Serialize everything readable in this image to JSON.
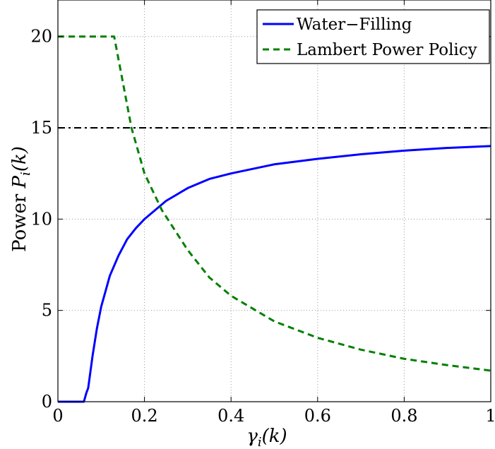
{
  "chart_data": {
    "type": "line",
    "title": "",
    "xlabel": "γi(k)",
    "ylabel": "Power Pi(k)",
    "xlim": [
      0,
      1
    ],
    "ylim": [
      0,
      22
    ],
    "grid": true,
    "legend_position": "top-right",
    "x_ticks": [
      0,
      0.2,
      0.4,
      0.6,
      0.8,
      1
    ],
    "x_tick_labels": [
      "0",
      "0.2",
      "0.4",
      "0.6",
      "0.8",
      "1"
    ],
    "y_ticks": [
      0,
      5,
      10,
      15,
      20
    ],
    "y_tick_labels": [
      "0",
      "5",
      "10",
      "15",
      "20"
    ],
    "series": [
      {
        "name": "Water−Filling",
        "color": "#0000ff",
        "style": "solid",
        "x": [
          0.0,
          0.02,
          0.04,
          0.06,
          0.066,
          0.07,
          0.08,
          0.09,
          0.1,
          0.12,
          0.14,
          0.16,
          0.18,
          0.2,
          0.25,
          0.3,
          0.35,
          0.4,
          0.5,
          0.6,
          0.7,
          0.8,
          0.9,
          1.0
        ],
        "y": [
          0,
          0,
          0,
          0,
          0.5,
          0.75,
          2.5,
          4.0,
          5.2,
          6.9,
          8.0,
          8.9,
          9.5,
          10.0,
          11.0,
          11.7,
          12.2,
          12.5,
          13.0,
          13.3,
          13.55,
          13.75,
          13.9,
          14.0
        ]
      },
      {
        "name": "Lambert Power Policy",
        "color": "#008000",
        "style": "dashed",
        "x": [
          0.0,
          0.05,
          0.1,
          0.13,
          0.15,
          0.17,
          0.2,
          0.24,
          0.3,
          0.35,
          0.4,
          0.5,
          0.6,
          0.7,
          0.8,
          0.9,
          1.0
        ],
        "y": [
          20,
          20,
          20,
          20,
          17.5,
          15.0,
          12.5,
          10.5,
          8.3,
          6.8,
          5.8,
          4.4,
          3.5,
          2.85,
          2.35,
          2.0,
          1.7
        ]
      },
      {
        "name": "",
        "color": "#000000",
        "style": "dashdot",
        "x": [
          0,
          1
        ],
        "y": [
          15,
          15
        ]
      }
    ]
  }
}
